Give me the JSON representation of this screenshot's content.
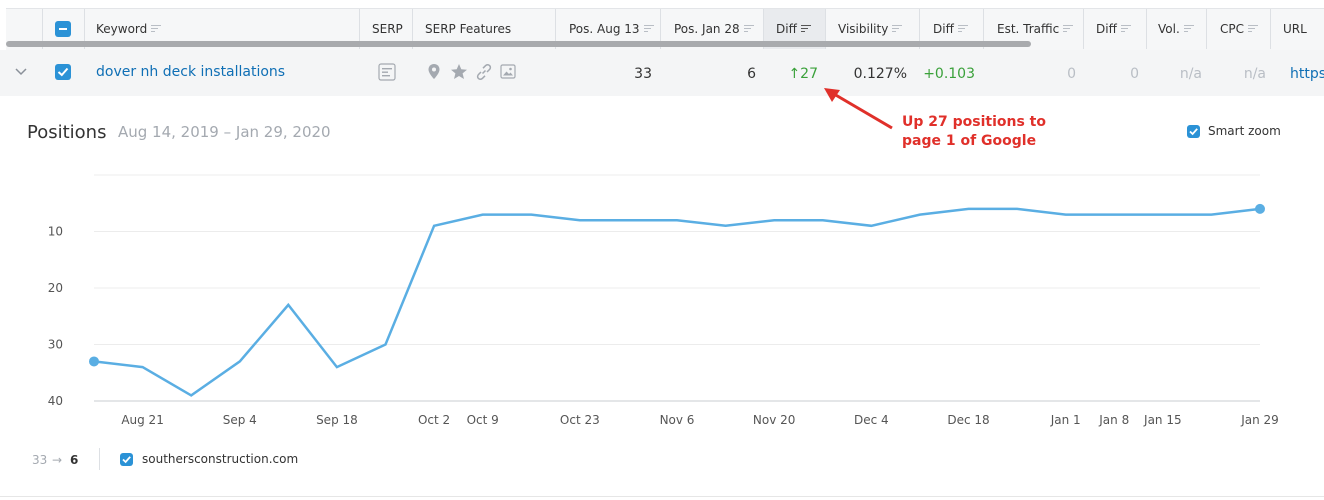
{
  "table": {
    "headers": {
      "keyword": "Keyword",
      "serp": "SERP",
      "serp_features": "SERP Features",
      "pos_aug13": "Pos. Aug 13",
      "pos_jan28": "Pos. Jan 28",
      "diff": "Diff",
      "visibility": "Visibility",
      "diff2": "Diff",
      "est_traffic": "Est. Traffic",
      "diff3": "Diff",
      "vol": "Vol.",
      "cpc": "CPC",
      "url": "URL"
    },
    "row": {
      "keyword": "dover nh deck installations",
      "pos_aug13": "33",
      "pos_jan28": "6",
      "diff": "↑27",
      "visibility": "0.127%",
      "visibility_diff": "+0.103",
      "est_traffic": "0",
      "traffic_diff": "0",
      "vol": "n/a",
      "cpc": "n/a",
      "url": "https"
    }
  },
  "annotation": {
    "text_line1": "Up 27 positions to",
    "text_line2": "page 1 of Google",
    "color": "#e0302a"
  },
  "chart_header": {
    "title": "Positions",
    "date_range": "Aug 14, 2019 – Jan 29, 2020",
    "smart_zoom_label": "Smart zoom"
  },
  "legend": {
    "from_to_prefix": "33",
    "arrow": "→",
    "to_value": "6",
    "domain": "southersconstruction.com"
  },
  "colors": {
    "accent": "#2b92d6",
    "line": "#5aaee3",
    "positive": "#3aa13a",
    "link": "#0f6fb5"
  },
  "chart_data": {
    "type": "line",
    "title": "Positions",
    "x": [
      "2019-08-14",
      "2019-08-21",
      "2019-08-28",
      "2019-09-04",
      "2019-09-11",
      "2019-09-18",
      "2019-09-25",
      "2019-10-02",
      "2019-10-09",
      "2019-10-16",
      "2019-10-23",
      "2019-10-30",
      "2019-11-06",
      "2019-11-13",
      "2019-11-20",
      "2019-11-27",
      "2019-12-04",
      "2019-12-11",
      "2019-12-18",
      "2019-12-25",
      "2020-01-01",
      "2020-01-08",
      "2020-01-15",
      "2020-01-22",
      "2020-01-29"
    ],
    "x_tick_labels": [
      "Aug 21",
      "Sep 4",
      "Sep 18",
      "Oct 2",
      "Oct 9",
      "Oct 23",
      "Nov 6",
      "Nov 20",
      "Dec 4",
      "Dec 18",
      "Jan 1",
      "Jan 8",
      "Jan 15",
      "Jan 29"
    ],
    "x_tick_dates": [
      "2019-08-21",
      "2019-09-04",
      "2019-09-18",
      "2019-10-02",
      "2019-10-09",
      "2019-10-23",
      "2019-11-06",
      "2019-11-20",
      "2019-12-04",
      "2019-12-18",
      "2020-01-01",
      "2020-01-08",
      "2020-01-15",
      "2020-01-29"
    ],
    "series": [
      {
        "name": "southersconstruction.com",
        "values": [
          33,
          34,
          39,
          33,
          23,
          34,
          30,
          9,
          7,
          7,
          8,
          8,
          8,
          9,
          8,
          8,
          9,
          7,
          6,
          6,
          7,
          7,
          7,
          7,
          6
        ]
      }
    ],
    "y_ticks": [
      10,
      20,
      30,
      40
    ],
    "ylim": [
      0,
      40
    ],
    "y_inverted": true,
    "grid": true
  }
}
